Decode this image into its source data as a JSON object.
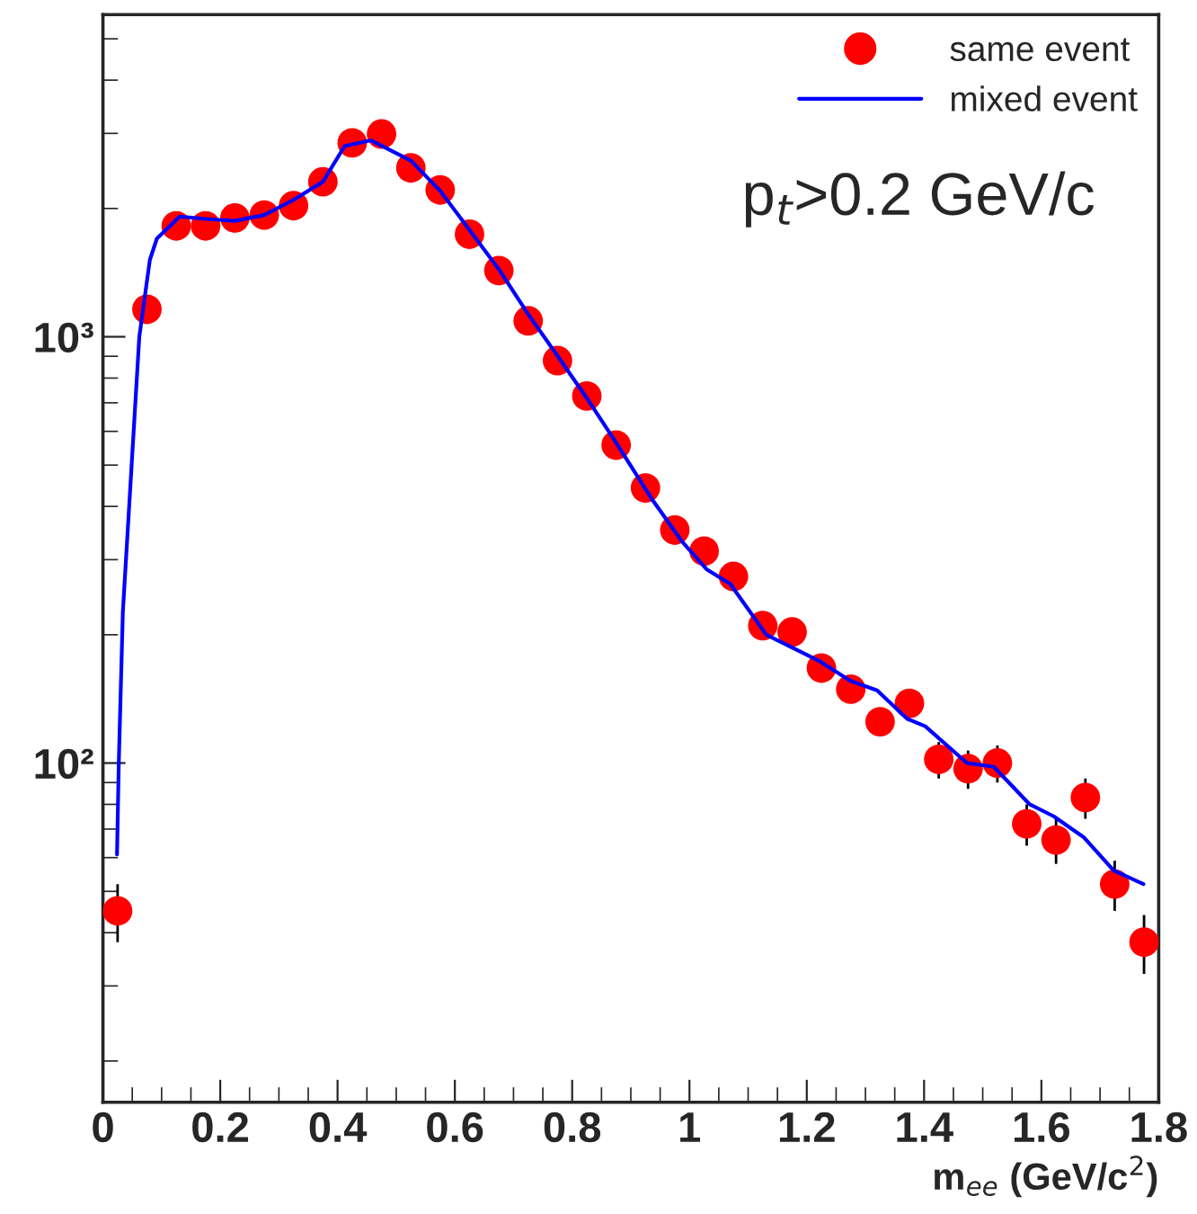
{
  "chart_data": {
    "type": "scatter",
    "xlabel": "m$_{ee}$ (GeV/c$^{2}$)",
    "annotations": [
      "p$_{t}$>0.2 GeV/c"
    ],
    "log": "y",
    "legend": "top right",
    "grid": false,
    "xlim": [
      0,
      1.8
    ],
    "xticks": [
      0,
      0.2,
      0.4,
      0.6,
      0.8,
      1,
      1.2,
      1.4,
      1.6,
      1.8
    ],
    "ylim": [
      16,
      5700
    ],
    "yticks": [
      {
        "value": 100,
        "label": "10²"
      },
      {
        "value": 1000,
        "label": "10³"
      }
    ],
    "series": [
      {
        "name": "same event",
        "marker": "circle",
        "color": "#ff0000",
        "x": [
          0.025,
          0.075,
          0.125,
          0.175,
          0.225,
          0.275,
          0.325,
          0.375,
          0.425,
          0.475,
          0.525,
          0.575,
          0.625,
          0.675,
          0.725,
          0.775,
          0.825,
          0.875,
          0.925,
          0.975,
          1.025,
          1.075,
          1.125,
          1.175,
          1.225,
          1.275,
          1.325,
          1.375,
          1.425,
          1.475,
          1.525,
          1.575,
          1.625,
          1.675,
          1.725,
          1.775
        ],
        "values": [
          45,
          1160,
          1820,
          1820,
          1900,
          1930,
          2030,
          2310,
          2850,
          2990,
          2490,
          2210,
          1740,
          1430,
          1090,
          879,
          726,
          557,
          442,
          352,
          314,
          274,
          210,
          203,
          167,
          149,
          125,
          138,
          102,
          97,
          100,
          72,
          66,
          83,
          52,
          38
        ],
        "errors": [
          7,
          null,
          null,
          null,
          null,
          null,
          null,
          null,
          null,
          null,
          null,
          null,
          null,
          null,
          null,
          null,
          null,
          null,
          null,
          null,
          null,
          null,
          null,
          null,
          null,
          null,
          null,
          null,
          10,
          10,
          10,
          8,
          8,
          9,
          7,
          6
        ]
      },
      {
        "name": "mixed event",
        "type": "line",
        "line_style": "solid",
        "color": "#0000ff",
        "x": [
          0.024,
          0.027,
          0.034,
          0.062,
          0.08,
          0.092,
          0.131,
          0.175,
          0.225,
          0.275,
          0.325,
          0.375,
          0.412,
          0.457,
          0.525,
          0.575,
          0.625,
          0.675,
          0.725,
          0.775,
          0.825,
          0.875,
          0.937,
          0.988,
          1.029,
          1.07,
          1.08,
          1.131,
          1.223,
          1.274,
          1.32,
          1.371,
          1.402,
          1.473,
          1.519,
          1.58,
          1.621,
          1.672,
          1.723,
          1.774
        ],
        "values": [
          61,
          100,
          227,
          1000,
          1515,
          1700,
          1915,
          1890,
          1870,
          1930,
          2095,
          2310,
          2800,
          2890,
          2590,
          2200,
          1780,
          1440,
          1130,
          902,
          718,
          564,
          414,
          330,
          285,
          263,
          251,
          200,
          173,
          156,
          148,
          127,
          122,
          100,
          98,
          80,
          75,
          67,
          56,
          52
        ]
      }
    ]
  }
}
